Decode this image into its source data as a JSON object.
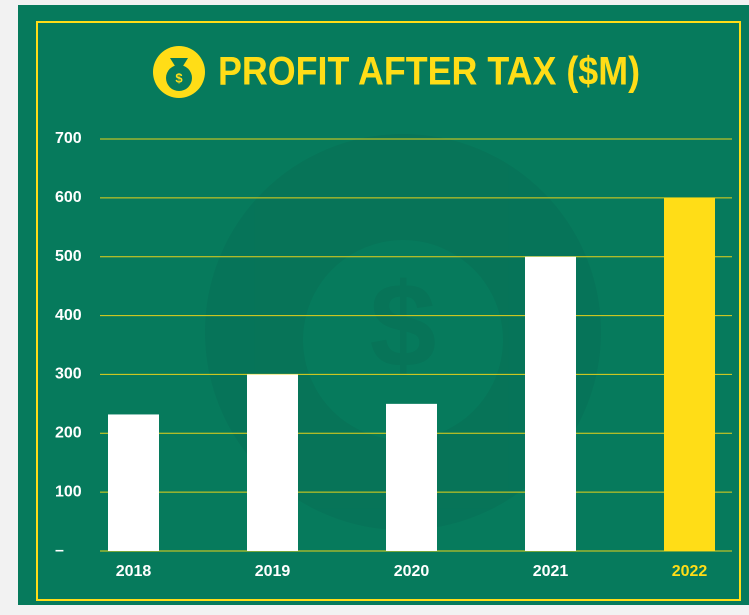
{
  "chart_data": {
    "type": "bar",
    "title": "PROFIT AFTER TAX ($M)",
    "categories": [
      "2018",
      "2019",
      "2020",
      "2021",
      "2022"
    ],
    "values": [
      232,
      300,
      250,
      500,
      600
    ],
    "colors": [
      "#ffffff",
      "#ffffff",
      "#ffffff",
      "#ffffff",
      "#ffdd17"
    ],
    "ylim": [
      0,
      700
    ],
    "yticks": [
      {
        "value": 0,
        "label": "–"
      },
      100,
      200,
      300,
      400,
      500,
      600,
      700
    ],
    "grid": true
  }
}
